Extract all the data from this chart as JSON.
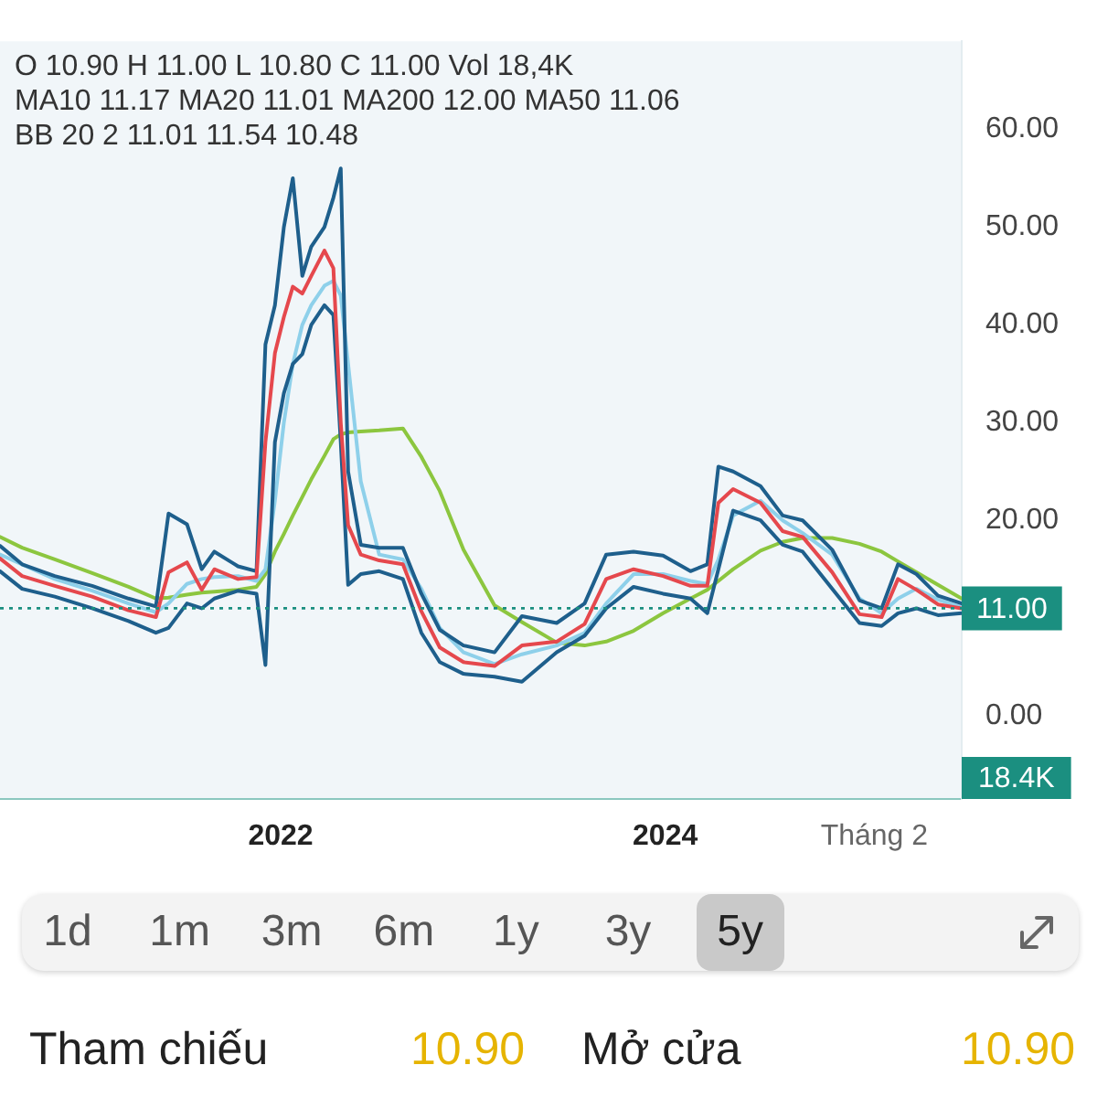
{
  "chart_data": [
    {
      "type": "line",
      "annotations": [
        "O 10.90 H 11.00 L 10.80 C 11.00 Vol 18,4K",
        "MA10 11.17 MA20 11.01 MA200 12.00 MA50 11.06",
        "BB 20 2 11.01 11.54 10.48",
        "18.4K"
      ],
      "x": [
        "2020-07-17",
        "2020-08-28",
        "2020-10-29",
        "2021-01-08",
        "2021-03-18",
        "2021-05-09",
        "2021-06-02",
        "2021-07-07",
        "2021-08-04",
        "2021-08-28",
        "2021-10-12",
        "2021-11-16",
        "2021-12-03",
        "2021-12-21",
        "2022-01-07",
        "2022-01-24",
        "2022-02-11",
        "2022-02-28",
        "2022-03-25",
        "2022-04-11",
        "2022-04-25",
        "2022-05-09",
        "2022-06-02",
        "2022-07-07",
        "2022-08-21",
        "2022-09-25",
        "2022-10-30",
        "2022-12-14",
        "2023-02-11",
        "2023-04-04",
        "2023-06-09",
        "2023-08-01",
        "2023-09-11",
        "2023-11-02",
        "2023-12-28",
        "2024-02-18",
        "2024-03-21",
        "2024-04-11",
        "2024-05-09",
        "2024-06-30",
        "2024-08-11",
        "2024-09-18",
        "2024-11-13",
        "2025-01-04",
        "2025-02-15",
        "2025-03-18",
        "2025-04-22",
        "2025-06-02",
        "2025-07-17"
      ],
      "series": [
        {
          "color": "#e5484d",
          "values": [
            16.1,
            14.3,
            13.3,
            12.2,
            10.8,
            10.1,
            14.7,
            15.7,
            12.9,
            15.0,
            14.0,
            14.2,
            28,
            37.1,
            40.8,
            43.9,
            43.2,
            45,
            47.6,
            45.8,
            30,
            19.5,
            16.5,
            15.9,
            15.5,
            10.7,
            7.0,
            5.5,
            5.1,
            7.2,
            7.6,
            9.4,
            14.0,
            15.0,
            14.3,
            13.3,
            13.3,
            21.8,
            23.2,
            21.8,
            18.9,
            18.3,
            14.7,
            10.4,
            10.1,
            14.0,
            12.9,
            11.4,
            11.0
          ]
        },
        {
          "color": "#1e5f8c",
          "values": [
            17.4,
            15.5,
            14.3,
            13.3,
            12.0,
            11.2,
            20.7,
            19.6,
            15.0,
            16.8,
            15.3,
            14.8,
            38,
            42,
            50,
            55,
            45,
            48,
            50,
            53,
            56,
            25,
            17.5,
            17.2,
            17.2,
            12.5,
            8.8,
            7.2,
            6.5,
            10.2,
            9.5,
            11.5,
            16.5,
            16.8,
            16.4,
            14.8,
            15.5,
            25.5,
            25,
            23.5,
            20.5,
            20.0,
            17,
            11.8,
            11,
            15.5,
            14.5,
            12.3,
            11.5
          ]
        },
        {
          "color": "#1e5f8c",
          "values": [
            14.8,
            13.0,
            12.2,
            11.0,
            9.7,
            8.5,
            9,
            11.5,
            11.0,
            12.0,
            12.8,
            12.5,
            5.2,
            28,
            33,
            36,
            37,
            40,
            42,
            41,
            28,
            13.4,
            14.5,
            14.8,
            14.0,
            8.5,
            5.5,
            4.3,
            4.0,
            3.5,
            6.5,
            8.2,
            11.0,
            13.2,
            12.5,
            12.0,
            10.5,
            15,
            21,
            20,
            17.5,
            16.8,
            13,
            9.5,
            9.2,
            10.5,
            11.0,
            10.3,
            10.5
          ]
        },
        {
          "color": "#8ed0ea",
          "values": [
            16.5,
            15.5,
            14.0,
            12.8,
            11.5,
            10.6,
            11.5,
            13.5,
            14.0,
            14.2,
            14.3,
            13.8,
            15,
            22,
            30,
            36,
            40,
            42,
            44,
            44.5,
            43,
            36,
            24,
            16.5,
            16,
            13,
            9,
            6.5,
            5.3,
            6.3,
            7.2,
            8.5,
            11.5,
            14.5,
            14.5,
            13.8,
            13.5,
            16,
            20.5,
            22,
            20,
            18.7,
            16.5,
            12,
            10.5,
            12.0,
            13.0,
            11.9,
            11.1
          ]
        },
        {
          "color": "#8cc63f",
          "values": [
            18.3,
            17.2,
            16.0,
            14.6,
            13.2,
            12.0,
            12.1,
            12.4,
            12.6,
            12.7,
            12.9,
            13.2,
            14.5,
            16.8,
            18.6,
            20.5,
            22.4,
            24.2,
            26.6,
            28.3,
            28.8,
            29.0,
            29.1,
            29.2,
            29.4,
            26.5,
            23.0,
            17,
            11.3,
            9.6,
            7.5,
            7.2,
            7.6,
            8.7,
            10.5,
            12.0,
            12.9,
            13.8,
            15.0,
            16.9,
            17.8,
            18.2,
            18.2,
            17.6,
            16.8,
            15.8,
            14.7,
            13.4,
            12.0
          ]
        }
      ],
      "xlim": [
        "2020-07-17",
        "2025-07-17"
      ],
      "xticks": [
        {
          "value": "2022-01-01",
          "label": "2022"
        },
        {
          "value": "2024-01-01",
          "label": "2024"
        },
        {
          "value": "2025-02-01",
          "label": "Tháng 2"
        }
      ],
      "ylim": [
        -8.5,
        69
      ],
      "yticks": [
        {
          "value": 0,
          "label": "0.00"
        },
        {
          "value": 20,
          "label": "20.00"
        },
        {
          "value": 30,
          "label": "30.00"
        },
        {
          "value": 40,
          "label": "40.00"
        },
        {
          "value": 50,
          "label": "50.00"
        },
        {
          "value": 60,
          "label": "60.00"
        }
      ],
      "ref_lines": [
        {
          "axis": "y",
          "value": 11,
          "label": "11.00",
          "color": "#1b8f80",
          "line_style": "dotted"
        }
      ]
    },
    {
      "type": "other",
      "annotations": [
        "1d",
        "1m",
        "3m",
        "6m",
        "1y",
        "3y",
        "5y"
      ]
    },
    {
      "type": "other",
      "annotations": [
        "Tham chiếu",
        "10.90",
        "Mở cửa",
        "10.90"
      ]
    }
  ]
}
